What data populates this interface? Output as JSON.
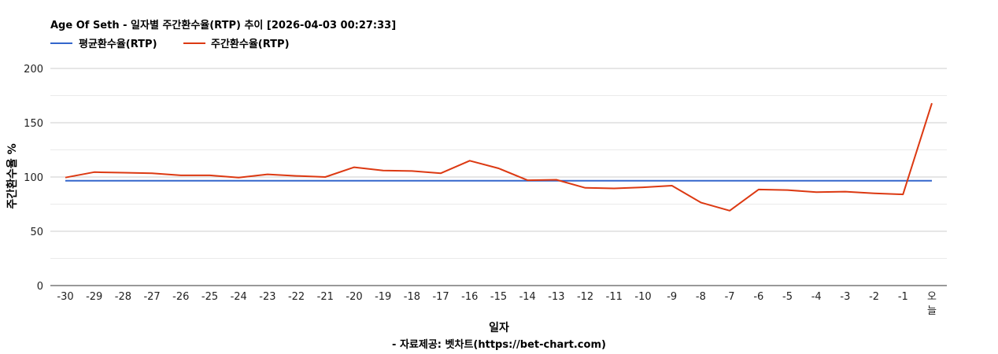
{
  "title": "Age Of Seth - 일자별 주간환수율(RTP) 추이 [2026-04-03 00:27:33]",
  "footer": "- 자료제공: 벳차트(https://bet-chart.com)",
  "chart_data": {
    "type": "line",
    "xlabel": "일자",
    "ylabel": "주간환수율 %",
    "ylim": [
      0,
      200
    ],
    "y_ticks": [
      "0",
      "50",
      "100",
      "150",
      "200"
    ],
    "grid": true,
    "legend_position": "top-left",
    "categories": [
      "-30",
      "-29",
      "-28",
      "-27",
      "-26",
      "-25",
      "-24",
      "-23",
      "-22",
      "-21",
      "-20",
      "-19",
      "-18",
      "-17",
      "-16",
      "-15",
      "-14",
      "-13",
      "-12",
      "-11",
      "-10",
      "-9",
      "-8",
      "-7",
      "-6",
      "-5",
      "-4",
      "-3",
      "-2",
      "-1",
      "오늘"
    ],
    "series": [
      {
        "name": "평균환수율(RTP)",
        "color": "#3366cc",
        "values": [
          96.5,
          96.5,
          96.5,
          96.5,
          96.5,
          96.5,
          96.5,
          96.5,
          96.5,
          96.5,
          96.5,
          96.5,
          96.5,
          96.5,
          96.5,
          96.5,
          96.5,
          96.5,
          96.5,
          96.5,
          96.5,
          96.5,
          96.5,
          96.5,
          96.5,
          96.5,
          96.5,
          96.5,
          96.5,
          96.5,
          96.5
        ]
      },
      {
        "name": "주간환수율(RTP)",
        "color": "#dc3912",
        "values": [
          99.5,
          104.5,
          104,
          103.5,
          101.5,
          101.5,
          99.5,
          102.5,
          101,
          100,
          109,
          106,
          105.5,
          103.5,
          115,
          108,
          97,
          97.5,
          90,
          89.5,
          90.5,
          92,
          76.5,
          69,
          88.5,
          88,
          86,
          86.5,
          85,
          84,
          168
        ]
      }
    ]
  }
}
